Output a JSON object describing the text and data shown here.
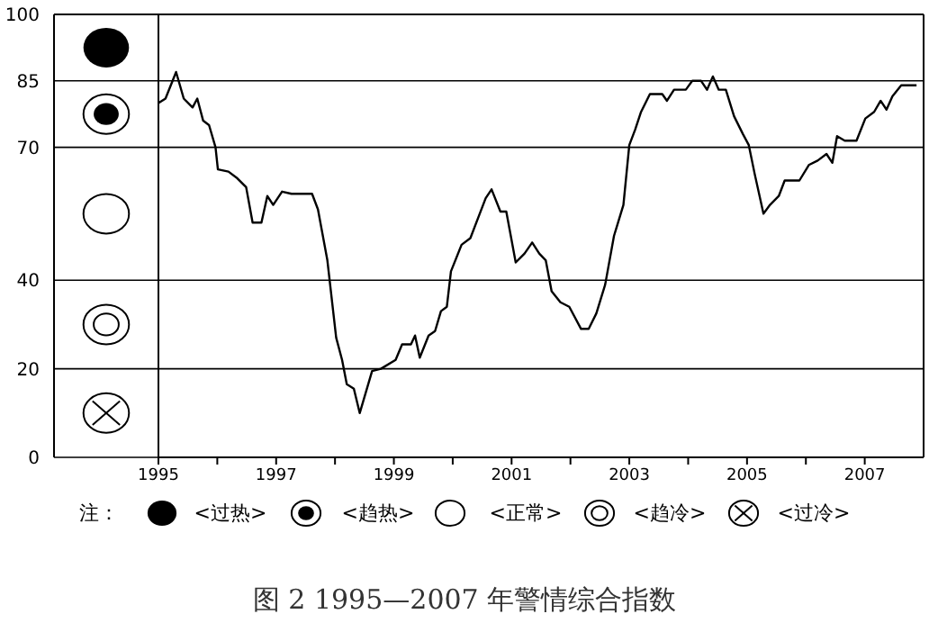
{
  "chart_data": {
    "type": "line",
    "title": "图 2 1995—2007 年警情综合指数",
    "annotations": [
      "注：",
      "<过热>",
      "<趋热>",
      "<正常>",
      "<趋冷>",
      "<过冷>"
    ],
    "x": [
      1995.0,
      1995.12,
      1995.3,
      1995.43,
      1995.58,
      1995.66,
      1995.76,
      1995.86,
      1995.97,
      1996.01,
      1996.19,
      1996.34,
      1996.49,
      1996.6,
      1996.75,
      1996.85,
      1996.95,
      1997.1,
      1997.26,
      1997.61,
      1997.71,
      1997.87,
      1998.02,
      1998.12,
      1998.2,
      1998.32,
      1998.42,
      1998.63,
      1998.78,
      1999.03,
      1999.14,
      1999.29,
      1999.36,
      1999.44,
      1999.59,
      1999.7,
      1999.8,
      1999.9,
      1999.97,
      2000.15,
      2000.3,
      2000.56,
      2000.66,
      2000.81,
      2000.91,
      2001.07,
      2001.22,
      2001.35,
      2001.47,
      2001.58,
      2001.68,
      2001.83,
      2001.98,
      2002.18,
      2002.31,
      2002.44,
      2002.59,
      2002.74,
      2002.9,
      2003.0,
      2003.1,
      2003.2,
      2003.35,
      2003.56,
      2003.64,
      2003.76,
      2003.96,
      2004.07,
      2004.22,
      2004.32,
      2004.42,
      2004.52,
      2004.64,
      2004.78,
      2004.93,
      2005.03,
      2005.13,
      2005.28,
      2005.39,
      2005.54,
      2005.64,
      2005.89,
      2006.05,
      2006.2,
      2006.35,
      2006.45,
      2006.53,
      2006.66,
      2006.86,
      2007.01,
      2007.16,
      2007.27,
      2007.37,
      2007.47,
      2007.62,
      2007.88
    ],
    "series": [
      {
        "color": "#000000",
        "values": [
          80,
          81,
          87,
          81,
          79,
          81,
          76,
          75,
          70,
          65,
          64.5,
          63,
          61,
          53,
          53,
          59,
          57,
          60,
          59.5,
          59.5,
          56,
          44.5,
          27,
          22,
          16.5,
          15.5,
          10,
          19.5,
          20,
          22,
          25.5,
          25.5,
          27.5,
          22.5,
          27.5,
          28.5,
          33,
          34,
          42,
          48,
          49.5,
          58.5,
          60.5,
          55.5,
          55.5,
          44,
          46,
          48.5,
          46,
          44.5,
          37.5,
          35,
          34,
          29,
          29,
          32.5,
          39,
          50,
          57,
          70.5,
          74,
          78,
          82,
          82,
          80.5,
          83,
          83,
          85,
          85,
          83,
          86,
          83,
          83,
          77,
          73,
          70.5,
          64,
          55,
          57,
          59,
          62.5,
          62.5,
          66,
          67,
          68.5,
          66.5,
          72.5,
          71.5,
          71.5,
          76.5,
          78,
          80.5,
          78.5,
          81.5,
          84,
          84
        ]
      }
    ],
    "xlim": [
      1995,
      2008
    ],
    "xticks": [
      1995,
      {
        "value": 1996,
        "label": null
      },
      1997,
      {
        "value": 1998,
        "label": null
      },
      1999,
      {
        "value": 2000,
        "label": null
      },
      2001,
      {
        "value": 2002,
        "label": null
      },
      2003,
      {
        "value": 2004,
        "label": null
      },
      2005,
      {
        "value": 2006,
        "label": null
      },
      2007
    ],
    "ylim": [
      0,
      100
    ],
    "yticks": [
      0,
      20,
      40,
      70,
      85,
      100
    ],
    "grid": "y",
    "marker": "none",
    "line_style": "solid"
  }
}
